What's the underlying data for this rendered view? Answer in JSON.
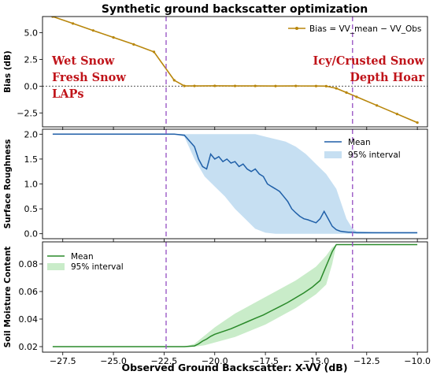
{
  "chart_data": [
    {
      "type": "line",
      "title": "Synthetic ground backscatter optimization",
      "ylabel": "Bias (dB)",
      "xlim": [
        -28.5,
        -9.5
      ],
      "ylim": [
        -3.8,
        6.5
      ],
      "yticks": [
        -2.5,
        0.0,
        2.5,
        5.0
      ],
      "ytick_labels": [
        "−2.5",
        "0.0",
        "2.5",
        "5.0"
      ],
      "zero_line": true,
      "legend": {
        "placement": "top-right",
        "entries": [
          "Bias = VV_mean − VV_Obs"
        ]
      },
      "series": [
        {
          "name": "Bias = VV_mean − VV_Obs",
          "color": "#b8860b",
          "marker": "dot",
          "x": [
            -28.0,
            -27.0,
            -26.0,
            -25.0,
            -24.0,
            -23.0,
            -22.0,
            -21.5,
            -21.0,
            -20.0,
            -19.0,
            -18.0,
            -17.0,
            -16.0,
            -15.0,
            -14.5,
            -14.0,
            -13.5,
            -13.0,
            -12.0,
            -11.0,
            -10.0
          ],
          "y": [
            6.5,
            5.85,
            5.2,
            4.55,
            3.9,
            3.2,
            0.55,
            0.02,
            0.02,
            0.03,
            0.02,
            0.02,
            0.01,
            0.02,
            0.01,
            0.0,
            -0.2,
            -0.6,
            -1.0,
            -1.8,
            -2.6,
            -3.4
          ]
        }
      ],
      "annotations": [
        {
          "text": "Wet Snow",
          "side": "left"
        },
        {
          "text": "Fresh Snow",
          "side": "left"
        },
        {
          "text": "LAPs",
          "side": "left"
        },
        {
          "text": "Icy/Crusted Snow",
          "side": "right"
        },
        {
          "text": "Depth Hoar",
          "side": "right"
        }
      ],
      "vlines": [
        -22.4,
        -13.2
      ]
    },
    {
      "type": "area",
      "ylabel": "Surface Roughness",
      "xlim": [
        -28.5,
        -9.5
      ],
      "ylim": [
        -0.1,
        2.1
      ],
      "yticks": [
        0.0,
        0.5,
        1.0,
        1.5,
        2.0
      ],
      "ytick_labels": [
        "0.0",
        "0.5",
        "1.0",
        "1.5",
        "2.0"
      ],
      "legend": {
        "placement": "top-right",
        "entries": [
          "Mean",
          "95% interval"
        ]
      },
      "series": [
        {
          "name": "Mean",
          "color": "#1f5fa8",
          "x": [
            -28.0,
            -25.0,
            -22.0,
            -21.5,
            -21.0,
            -20.8,
            -20.6,
            -20.4,
            -20.2,
            -20.0,
            -19.8,
            -19.6,
            -19.4,
            -19.2,
            -19.0,
            -18.8,
            -18.6,
            -18.4,
            -18.2,
            -18.0,
            -17.8,
            -17.6,
            -17.4,
            -17.2,
            -17.0,
            -16.8,
            -16.6,
            -16.4,
            -16.2,
            -16.0,
            -15.8,
            -15.6,
            -15.4,
            -15.2,
            -15.0,
            -14.8,
            -14.6,
            -14.4,
            -14.2,
            -14.0,
            -13.8,
            -13.6,
            -13.4,
            -13.2,
            -13.0,
            -12.0,
            -11.0,
            -10.0
          ],
          "y": [
            2.0,
            2.0,
            2.0,
            1.98,
            1.75,
            1.5,
            1.35,
            1.3,
            1.6,
            1.5,
            1.55,
            1.45,
            1.5,
            1.42,
            1.45,
            1.35,
            1.4,
            1.3,
            1.25,
            1.3,
            1.2,
            1.15,
            1.0,
            0.95,
            0.9,
            0.85,
            0.75,
            0.65,
            0.5,
            0.42,
            0.35,
            0.3,
            0.28,
            0.25,
            0.22,
            0.3,
            0.45,
            0.3,
            0.15,
            0.08,
            0.05,
            0.04,
            0.03,
            0.03,
            0.02,
            0.02,
            0.02,
            0.02
          ]
        }
      ],
      "interval": {
        "name": "95% interval",
        "color": "#c6dff2",
        "x": [
          -28.0,
          -22.0,
          -21.5,
          -21.0,
          -20.5,
          -20.0,
          -19.5,
          -19.0,
          -18.5,
          -18.0,
          -17.5,
          -17.0,
          -16.5,
          -16.0,
          -15.5,
          -15.0,
          -14.5,
          -14.0,
          -13.5,
          -13.2,
          -13.0,
          -12.0,
          -10.0
        ],
        "lower": [
          2.0,
          2.0,
          1.95,
          1.5,
          1.15,
          0.95,
          0.75,
          0.5,
          0.3,
          0.1,
          0.02,
          0.0,
          0.0,
          0.0,
          0.0,
          0.0,
          0.0,
          0.0,
          0.0,
          0.0,
          0.0,
          0.0,
          0.0
        ],
        "upper": [
          2.0,
          2.0,
          2.0,
          2.0,
          2.0,
          2.0,
          2.0,
          2.0,
          2.0,
          2.0,
          1.95,
          1.9,
          1.85,
          1.75,
          1.6,
          1.4,
          1.2,
          0.9,
          0.3,
          0.1,
          0.05,
          0.03,
          0.02
        ]
      },
      "vlines": [
        -22.4,
        -13.2
      ]
    },
    {
      "type": "area",
      "ylabel": "Soil Moisture Content",
      "xlabel": "Observed Ground Backscatter: X-VV (dB)",
      "xlim": [
        -28.5,
        -9.5
      ],
      "ylim": [
        0.016,
        0.096
      ],
      "yticks": [
        0.02,
        0.04,
        0.06,
        0.08
      ],
      "ytick_labels": [
        "0.02",
        "0.04",
        "0.06",
        "0.08"
      ],
      "xticks": [
        -27.5,
        -25.0,
        -22.5,
        -20.0,
        -17.5,
        -15.0,
        -12.5,
        -10.0
      ],
      "xtick_labels": [
        "−27.5",
        "−25.0",
        "−22.5",
        "−20.0",
        "−17.5",
        "−15.0",
        "−12.5",
        "−10.0"
      ],
      "legend": {
        "placement": "top-left",
        "entries": [
          "Mean",
          "95% interval"
        ]
      },
      "series": [
        {
          "name": "Mean",
          "color": "#2a8a2a",
          "x": [
            -28.0,
            -25.0,
            -22.0,
            -21.5,
            -21.0,
            -20.8,
            -20.6,
            -20.4,
            -20.2,
            -20.0,
            -19.6,
            -19.2,
            -18.8,
            -18.4,
            -18.0,
            -17.6,
            -17.2,
            -16.8,
            -16.4,
            -16.0,
            -15.6,
            -15.2,
            -14.8,
            -14.6,
            -14.4,
            -14.2,
            -14.0,
            -13.0,
            -12.0,
            -11.0,
            -10.0
          ],
          "y": [
            0.02,
            0.02,
            0.02,
            0.02,
            0.0205,
            0.022,
            0.024,
            0.0255,
            0.0275,
            0.029,
            0.031,
            0.033,
            0.0355,
            0.038,
            0.0405,
            0.043,
            0.046,
            0.049,
            0.052,
            0.0555,
            0.059,
            0.063,
            0.068,
            0.075,
            0.082,
            0.089,
            0.094,
            0.094,
            0.094,
            0.094,
            0.094
          ]
        }
      ],
      "interval": {
        "name": "95% interval",
        "color": "#c9ecc9",
        "x": [
          -28.0,
          -22.0,
          -21.5,
          -21.0,
          -20.5,
          -20.0,
          -19.5,
          -19.0,
          -18.5,
          -18.0,
          -17.5,
          -17.0,
          -16.5,
          -16.0,
          -15.5,
          -15.0,
          -14.5,
          -14.2,
          -14.0,
          -10.0
        ],
        "lower": [
          0.02,
          0.02,
          0.02,
          0.02,
          0.021,
          0.023,
          0.025,
          0.027,
          0.03,
          0.033,
          0.036,
          0.04,
          0.044,
          0.048,
          0.053,
          0.058,
          0.065,
          0.08,
          0.094,
          0.094
        ],
        "upper": [
          0.02,
          0.02,
          0.02,
          0.022,
          0.028,
          0.034,
          0.039,
          0.044,
          0.048,
          0.052,
          0.056,
          0.06,
          0.064,
          0.068,
          0.073,
          0.078,
          0.086,
          0.092,
          0.094,
          0.094
        ]
      },
      "vlines": [
        -22.4,
        -13.2
      ]
    }
  ]
}
